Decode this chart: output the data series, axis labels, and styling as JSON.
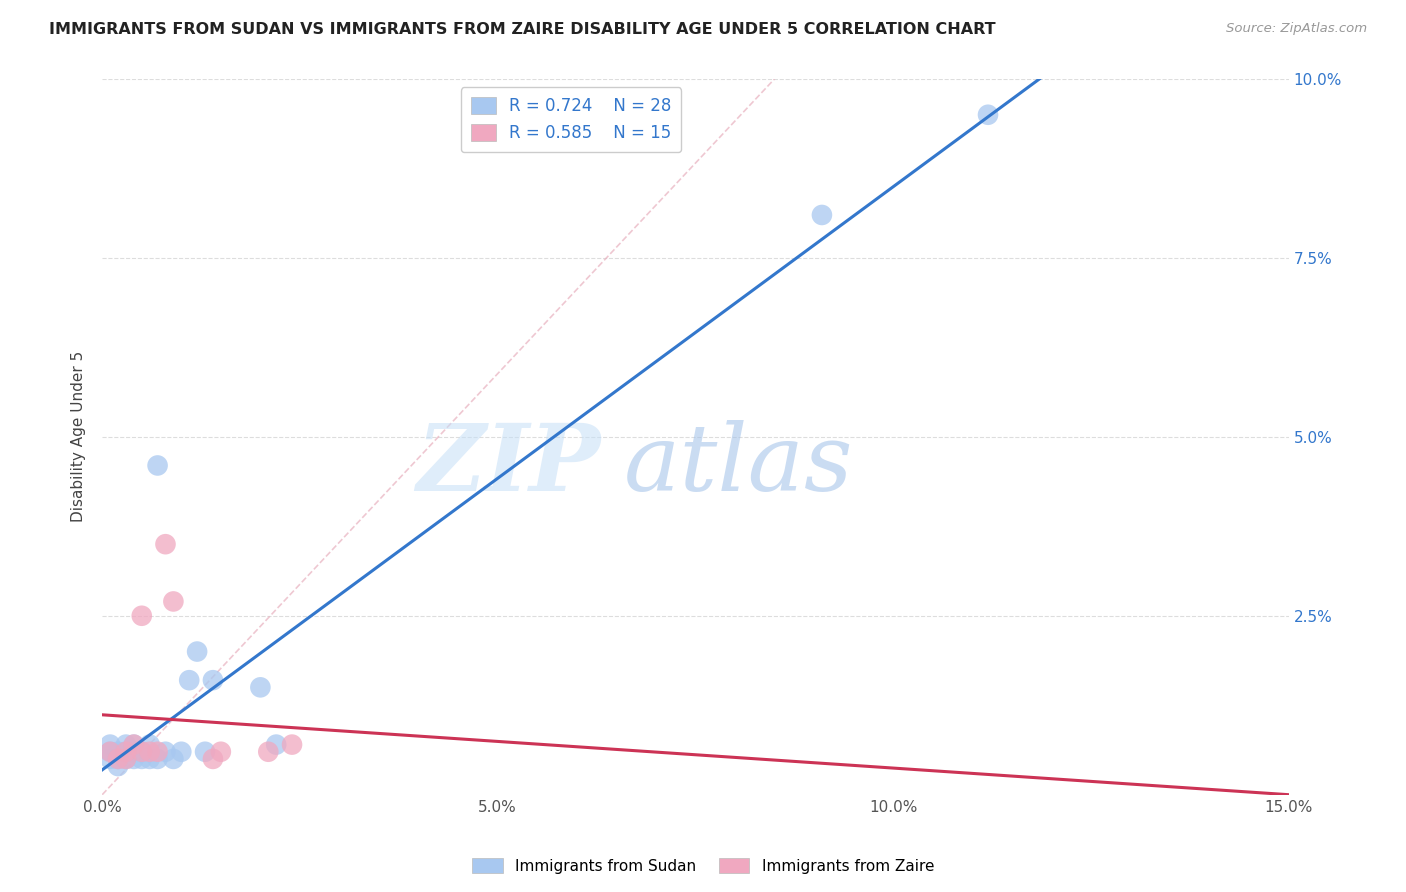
{
  "title": "IMMIGRANTS FROM SUDAN VS IMMIGRANTS FROM ZAIRE DISABILITY AGE UNDER 5 CORRELATION CHART",
  "source": "Source: ZipAtlas.com",
  "ylabel": "Disability Age Under 5",
  "xlim": [
    0.0,
    0.15
  ],
  "ylim": [
    0.0,
    0.1
  ],
  "xticks": [
    0.0,
    0.05,
    0.1,
    0.15
  ],
  "yticks": [
    0.0,
    0.025,
    0.05,
    0.075,
    0.1
  ],
  "xtick_labels": [
    "0.0%",
    "5.0%",
    "10.0%",
    "15.0%"
  ],
  "ytick_labels": [
    "",
    "2.5%",
    "5.0%",
    "7.5%",
    "10.0%"
  ],
  "sudan_R": "0.724",
  "sudan_N": "28",
  "zaire_R": "0.585",
  "zaire_N": "15",
  "sudan_color": "#a8c8f0",
  "zaire_color": "#f0a8c0",
  "sudan_line_color": "#3377cc",
  "zaire_line_color": "#cc3355",
  "watermark_zip": "ZIP",
  "watermark_atlas": "atlas",
  "sudan_points_x": [
    0.001,
    0.001,
    0.001,
    0.002,
    0.002,
    0.002,
    0.003,
    0.003,
    0.003,
    0.004,
    0.004,
    0.005,
    0.005,
    0.006,
    0.006,
    0.007,
    0.007,
    0.008,
    0.009,
    0.01,
    0.011,
    0.012,
    0.013,
    0.014,
    0.02,
    0.022,
    0.091,
    0.112
  ],
  "sudan_points_y": [
    0.005,
    0.006,
    0.007,
    0.004,
    0.005,
    0.006,
    0.005,
    0.006,
    0.007,
    0.005,
    0.007,
    0.005,
    0.006,
    0.005,
    0.007,
    0.046,
    0.005,
    0.006,
    0.005,
    0.006,
    0.016,
    0.02,
    0.006,
    0.016,
    0.015,
    0.007,
    0.081,
    0.095
  ],
  "zaire_points_x": [
    0.001,
    0.002,
    0.003,
    0.003,
    0.004,
    0.005,
    0.005,
    0.006,
    0.007,
    0.008,
    0.009,
    0.014,
    0.015,
    0.021,
    0.024
  ],
  "zaire_points_y": [
    0.006,
    0.005,
    0.005,
    0.006,
    0.007,
    0.006,
    0.025,
    0.006,
    0.006,
    0.035,
    0.027,
    0.005,
    0.006,
    0.006,
    0.007
  ],
  "background_color": "#ffffff",
  "grid_color": "#dddddd",
  "title_fontsize": 11.5,
  "source_fontsize": 9.5
}
